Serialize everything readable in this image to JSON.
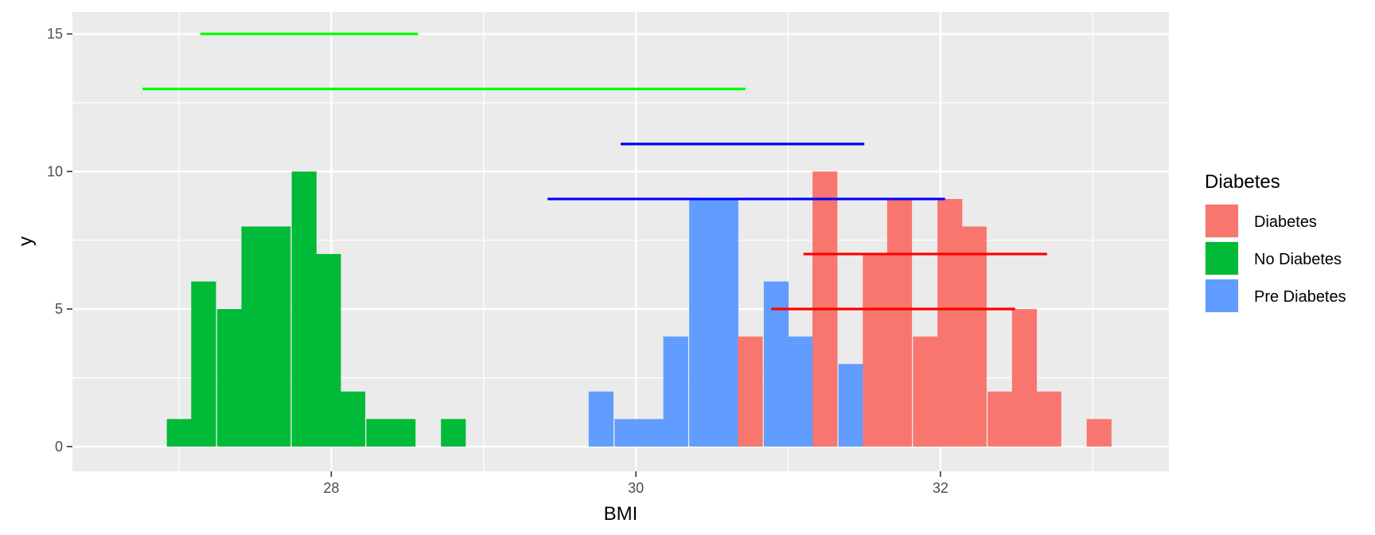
{
  "chart_data": {
    "type": "bar",
    "subtype": "histogram with interval segments",
    "xlabel": "BMI",
    "ylabel": "y",
    "xlim": [
      26.3,
      33.5
    ],
    "ylim": [
      -0.9,
      15.8
    ],
    "x_ticks": [
      28,
      30,
      32
    ],
    "y_ticks": [
      0,
      5,
      10,
      15
    ],
    "x_tick_labels": [
      "28",
      "30",
      "32"
    ],
    "y_tick_labels": [
      "0",
      "5",
      "10",
      "15"
    ],
    "grid": true,
    "bin_width": 0.163,
    "legend": {
      "title": "Diabetes",
      "position": "right",
      "entries": [
        {
          "label": "Diabetes",
          "color": "#F8766D"
        },
        {
          "label": "No Diabetes",
          "color": "#00BA38"
        },
        {
          "label": "Pre Diabetes",
          "color": "#619CFF"
        }
      ]
    },
    "series": [
      {
        "name": "No Diabetes",
        "color": "#00BA38",
        "bins": [
          {
            "x0": 26.92,
            "count": 1
          },
          {
            "x0": 27.08,
            "count": 6
          },
          {
            "x0": 27.25,
            "count": 5
          },
          {
            "x0": 27.41,
            "count": 8
          },
          {
            "x0": 27.57,
            "count": 8
          },
          {
            "x0": 27.74,
            "count": 10
          },
          {
            "x0": 27.9,
            "count": 7
          },
          {
            "x0": 28.06,
            "count": 2
          },
          {
            "x0": 28.23,
            "count": 1
          },
          {
            "x0": 28.39,
            "count": 1
          },
          {
            "x0": 28.72,
            "count": 1
          }
        ]
      },
      {
        "name": "Pre Diabetes",
        "color": "#619CFF",
        "bins": [
          {
            "x0": 29.69,
            "count": 2
          },
          {
            "x0": 29.86,
            "count": 1
          },
          {
            "x0": 30.02,
            "count": 1
          },
          {
            "x0": 30.18,
            "count": 4
          },
          {
            "x0": 30.35,
            "count": 9
          },
          {
            "x0": 30.51,
            "count": 9
          },
          {
            "x0": 30.67,
            "count": 3
          },
          {
            "x0": 30.84,
            "count": 6
          },
          {
            "x0": 31.0,
            "count": 4
          },
          {
            "x0": 31.16,
            "count": 7
          },
          {
            "x0": 31.33,
            "count": 3
          },
          {
            "x0": 31.82,
            "count": 1
          }
        ]
      },
      {
        "name": "Diabetes",
        "color": "#F8766D",
        "bins": [
          {
            "x0": 30.67,
            "count": 4
          },
          {
            "x0": 31.16,
            "count": 10
          },
          {
            "x0": 31.49,
            "count": 7
          },
          {
            "x0": 31.65,
            "count": 9
          },
          {
            "x0": 31.82,
            "count": 4
          },
          {
            "x0": 31.98,
            "count": 9
          },
          {
            "x0": 32.14,
            "count": 8
          },
          {
            "x0": 32.31,
            "count": 2
          },
          {
            "x0": 32.47,
            "count": 5
          },
          {
            "x0": 32.63,
            "count": 2
          },
          {
            "x0": 32.96,
            "count": 1
          }
        ]
      }
    ],
    "segments": [
      {
        "y": 15,
        "x_start": 27.14,
        "x_end": 28.57,
        "color": "#00FF00"
      },
      {
        "y": 13,
        "x_start": 26.76,
        "x_end": 30.72,
        "color": "#00FF00"
      },
      {
        "y": 11,
        "x_start": 29.9,
        "x_end": 31.5,
        "color": "#0000FF"
      },
      {
        "y": 9,
        "x_start": 29.42,
        "x_end": 32.03,
        "color": "#0000FF"
      },
      {
        "y": 7,
        "x_start": 31.1,
        "x_end": 32.7,
        "color": "#FF0000"
      },
      {
        "y": 5,
        "x_start": 30.89,
        "x_end": 32.49,
        "color": "#FF0000"
      }
    ]
  }
}
